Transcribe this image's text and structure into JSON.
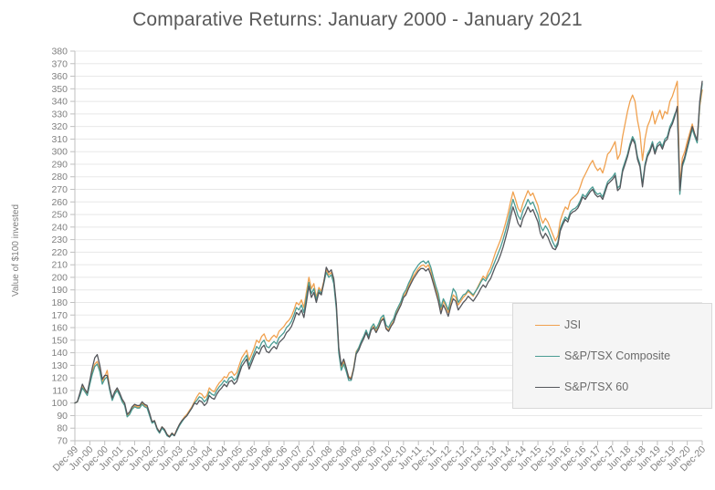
{
  "title": "Comparative Returns: January 2000 - January 2021",
  "chart_data": {
    "type": "line",
    "title": "Comparative Returns: January 2000 - January 2021",
    "xlabel": "",
    "ylabel": "Value of $100 invested",
    "ylim": [
      70,
      380
    ],
    "ytick_step": 10,
    "grid": "horizontal",
    "grid_color": "#e8e8e8",
    "axis_color": "#bfbfbf",
    "tick_text_color": "#7f7f7f",
    "legend_position": "middle-right",
    "months_per_x_tick": 6,
    "x_tick_labels": [
      "Dec-99",
      "Jun-00",
      "Dec-00",
      "Jun-01",
      "Dec-01",
      "Jun-02",
      "Dec-02",
      "Jun-03",
      "Dec-03",
      "Jun-04",
      "Dec-04",
      "Jun-05",
      "Dec-05",
      "Jun-06",
      "Dec-06",
      "Jun-07",
      "Dec-07",
      "Jun-08",
      "Dec-08",
      "Jun-09",
      "Dec-09",
      "Jun-10",
      "Dec-10",
      "Jun-11",
      "Dec-11",
      "Jun-12",
      "Dec-12",
      "Jun-13",
      "Dec-13",
      "Jun-14",
      "Dec-14",
      "Jun-15",
      "Dec-15",
      "Jun-16",
      "Dec-16",
      "Jun-17",
      "Dec-17",
      "Jun-18",
      "Dec-18",
      "Jun-19",
      "Dec-19",
      "Jun-20",
      "Dec-20"
    ],
    "series": [
      {
        "name": "JSI",
        "color": "#f0a14f",
        "values": [
          100,
          101,
          107,
          113,
          110,
          107,
          116,
          125,
          131,
          133,
          127,
          117,
          121,
          126,
          111,
          103,
          108,
          111,
          107,
          102,
          99,
          90,
          92,
          96,
          98,
          97,
          97,
          100,
          98,
          97,
          91,
          85,
          86,
          80,
          77,
          81,
          79,
          75,
          73.5,
          76,
          74.5,
          79,
          83,
          86,
          89,
          91,
          94,
          97,
          101,
          105,
          108,
          107,
          104,
          106,
          112,
          110,
          109,
          113,
          116,
          118,
          121,
          120,
          124,
          125,
          122,
          124,
          130,
          136,
          139,
          142,
          134,
          139,
          144,
          150,
          148,
          153,
          155,
          150,
          149,
          152,
          154,
          152,
          157,
          159,
          161,
          164,
          166,
          169,
          174,
          180,
          178,
          182,
          176,
          188,
          200,
          191,
          195,
          184,
          192,
          189,
          197,
          206,
          202,
          204,
          197,
          177,
          142,
          128,
          133,
          127,
          121,
          120,
          128,
          141,
          144,
          148,
          152,
          157,
          152,
          158,
          161,
          157,
          161,
          166,
          168,
          160,
          158,
          162,
          165,
          171,
          175,
          179,
          185,
          188,
          193,
          197,
          201,
          204,
          207,
          209,
          210,
          208,
          210,
          205,
          198,
          191,
          184,
          174,
          181,
          177,
          172,
          180,
          186,
          184,
          178,
          181,
          184,
          186,
          189,
          187,
          185,
          189,
          193,
          197,
          201,
          199,
          204,
          208,
          214,
          220,
          225,
          230,
          236,
          243,
          251,
          260,
          268,
          262,
          255,
          252,
          259,
          264,
          269,
          265,
          267,
          262,
          257,
          248,
          243,
          247,
          244,
          239,
          234,
          229,
          233,
          245,
          251,
          256,
          254,
          261,
          263,
          265,
          267,
          272,
          278,
          282,
          286,
          290,
          293,
          288,
          285,
          287,
          283,
          290,
          298,
          300,
          304,
          308,
          294,
          298,
          312,
          322,
          332,
          340,
          345,
          340,
          325,
          315,
          293,
          310,
          320,
          325,
          332,
          322,
          328,
          333,
          326,
          332,
          330,
          340,
          344,
          350,
          356,
          272,
          295,
          300,
          308,
          315,
          322,
          314,
          308,
          336,
          349
        ]
      },
      {
        "name": "S&P/TSX Composite",
        "color": "#4a9c93",
        "values": [
          100,
          101,
          106,
          112,
          109,
          106,
          115,
          123,
          129,
          131,
          125,
          115,
          119,
          121,
          110,
          102,
          107,
          110,
          106,
          101,
          98,
          89,
          91,
          95,
          97,
          96,
          96,
          99,
          97,
          96,
          90,
          84,
          85,
          79,
          76,
          80,
          78,
          74,
          73,
          75,
          74,
          78,
          82,
          85,
          88,
          90,
          93,
          96,
          100,
          102,
          105,
          104,
          101,
          103,
          109,
          107,
          106,
          110,
          113,
          115,
          118,
          116,
          120,
          121,
          118,
          120,
          126,
          132,
          135,
          138,
          130,
          135,
          140,
          145,
          143,
          148,
          150,
          145,
          144,
          147,
          149,
          147,
          152,
          154,
          156,
          160,
          162,
          165,
          170,
          176,
          174,
          178,
          172,
          184,
          196,
          187,
          191,
          182,
          190,
          187,
          195,
          204,
          200,
          202,
          195,
          175,
          140,
          126,
          131,
          125,
          118,
          118,
          127,
          140,
          144,
          149,
          153,
          158,
          153,
          160,
          163,
          159,
          163,
          168,
          170,
          162,
          160,
          164,
          167,
          173,
          177,
          181,
          187,
          190,
          195,
          199,
          204,
          207,
          210,
          212,
          213,
          211,
          213,
          208,
          200,
          193,
          187,
          176,
          183,
          179,
          174,
          183,
          191,
          188,
          180,
          183,
          186,
          187,
          190,
          188,
          186,
          189,
          192,
          196,
          199,
          197,
          201,
          204,
          209,
          214,
          219,
          224,
          230,
          237,
          245,
          254,
          262,
          256,
          249,
          246,
          253,
          257,
          262,
          258,
          260,
          255,
          250,
          241,
          237,
          241,
          238,
          233,
          228,
          224,
          228,
          239,
          244,
          248,
          246,
          252,
          254,
          255,
          257,
          261,
          266,
          264,
          267,
          270,
          272,
          268,
          266,
          267,
          264,
          270,
          276,
          278,
          280,
          283,
          271,
          273,
          286,
          292,
          298,
          306,
          312,
          308,
          296,
          290,
          274,
          290,
          298,
          302,
          308,
          300,
          306,
          308,
          304,
          310,
          312,
          320,
          324,
          330,
          334,
          266,
          288,
          294,
          302,
          310,
          318,
          312,
          307,
          338,
          354
        ]
      },
      {
        "name": "S&P/TSX 60",
        "color": "#54565b",
        "values": [
          100,
          101,
          108,
          115,
          111,
          108,
          118,
          128,
          136,
          138.5,
          130,
          119,
          122,
          122,
          112,
          104,
          109,
          112,
          108,
          103,
          100,
          91,
          93,
          97,
          99,
          98,
          98,
          101,
          99,
          98,
          92,
          85,
          86,
          80,
          77,
          81,
          79,
          75,
          73,
          76,
          74,
          79,
          83,
          86,
          88,
          90,
          93,
          96,
          100,
          99,
          102,
          101,
          98,
          100,
          106,
          104,
          103,
          107,
          110,
          112,
          115,
          113,
          117,
          118,
          115,
          117,
          123,
          129,
          132,
          135,
          127,
          132,
          137,
          141,
          139,
          144,
          146,
          141,
          140,
          143,
          145,
          143,
          148,
          150,
          152,
          156,
          158,
          161,
          166,
          172,
          170,
          174,
          168,
          180,
          193,
          184,
          188,
          180,
          188,
          186,
          196,
          208,
          204,
          206,
          199,
          179,
          144,
          130,
          135,
          128,
          120,
          119,
          127,
          139,
          142,
          147,
          151,
          156,
          151,
          158,
          160,
          156,
          160,
          165,
          167,
          159,
          157,
          161,
          164,
          170,
          174,
          178,
          184,
          186,
          191,
          195,
          199,
          202,
          205,
          207,
          207,
          205,
          207,
          202,
          195,
          188,
          181,
          171,
          178,
          174,
          169,
          177,
          183,
          181,
          174,
          177,
          180,
          182,
          185,
          183,
          181,
          184,
          187,
          191,
          194,
          192,
          196,
          199,
          204,
          209,
          213,
          218,
          224,
          231,
          239,
          248,
          256,
          250,
          243,
          240,
          247,
          251,
          256,
          252,
          254,
          249,
          244,
          235,
          231,
          235,
          232,
          227,
          223,
          222,
          226,
          237,
          242,
          246,
          244,
          250,
          252,
          253,
          255,
          259,
          264,
          262,
          265,
          268,
          270,
          266,
          264,
          265,
          262,
          268,
          274,
          276,
          278,
          281,
          269,
          271,
          284,
          290,
          296,
          304,
          310,
          306,
          294,
          288,
          272,
          288,
          296,
          300,
          306,
          298,
          304,
          306,
          302,
          308,
          310,
          318,
          322,
          328,
          336,
          269,
          290,
          296,
          304,
          312,
          320,
          314,
          309,
          340,
          356
        ]
      }
    ]
  },
  "legend": {
    "items": [
      {
        "label": "JSI"
      },
      {
        "label": "S&P/TSX Composite"
      },
      {
        "label": "S&P/TSX 60"
      }
    ]
  }
}
